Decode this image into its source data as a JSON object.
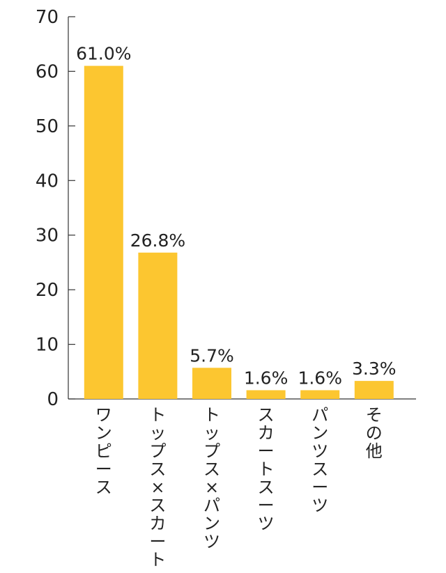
{
  "chart_data": {
    "type": "bar",
    "categories": [
      "ワンピース",
      "トップス×スカート",
      "トップス×パンツ",
      "スカートスーツ",
      "パンツスーツ",
      "その他"
    ],
    "values": [
      61.0,
      26.8,
      5.7,
      1.6,
      1.6,
      3.3
    ],
    "value_labels": [
      "61.0%",
      "26.8%",
      "5.7%",
      "1.6%",
      "1.6%",
      "3.3%"
    ],
    "y_ticks": [
      "0",
      "10",
      "20",
      "30",
      "40",
      "50",
      "60",
      "70"
    ],
    "title": "",
    "xlabel": "",
    "ylabel": "",
    "ylim": [
      0,
      70
    ],
    "grid": false,
    "bar_color": "#FCC630",
    "axis_color": "#333333",
    "category_orientation": "vertical"
  }
}
